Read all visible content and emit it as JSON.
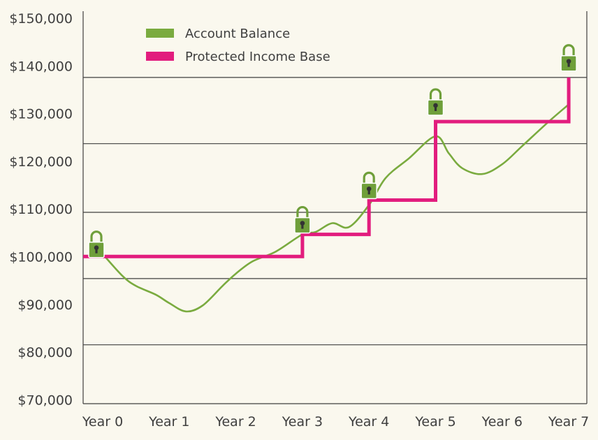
{
  "colors": {
    "background": "#faf8ee",
    "account_balance": "#7aab3f",
    "protected_income_base": "#e21d7e",
    "lock": "#6f9f3a",
    "axis": "#3f3f3f"
  },
  "chart_data": {
    "type": "line",
    "title": "",
    "xlabel": "",
    "ylabel": "",
    "categories": [
      "Year 0",
      "Year 1",
      "Year 2",
      "Year 3",
      "Year 4",
      "Year 5",
      "Year 6",
      "Year 7"
    ],
    "y_ticks": [
      "$150,000",
      "$140,000",
      "$130,000",
      "$120,000",
      "$110,000",
      "$100,000",
      "$90,000",
      "$80,000",
      "$70,000"
    ],
    "ylim": [
      70000,
      150000
    ],
    "grid": "horizontal lines at $136,500, $123,000, $109,000, $95,500, $82,000",
    "legend": "top-left",
    "series": [
      {
        "name": "Account Balance",
        "icon": "solid-line",
        "x": [
          0,
          0.3,
          0.5,
          0.8,
          1.0,
          1.25,
          1.5,
          1.8,
          2.0,
          2.25,
          2.6,
          3.0,
          3.2,
          3.45,
          3.7,
          4.0,
          4.25,
          4.6,
          5.0,
          5.2,
          5.4,
          5.7,
          6.0,
          6.3,
          6.7,
          7.0
        ],
        "values": [
          100500,
          96000,
          94000,
          92200,
          90500,
          88800,
          90000,
          94000,
          96500,
          99000,
          101000,
          104500,
          105000,
          106800,
          106000,
          110500,
          116000,
          120000,
          124500,
          121000,
          118000,
          116800,
          118800,
          122500,
          127500,
          131000
        ]
      },
      {
        "name": "Protected Income Base",
        "icon": "step-line",
        "x": [
          0,
          3,
          3,
          4,
          4,
          5,
          5,
          7,
          7
        ],
        "values": [
          100000,
          100000,
          104500,
          104500,
          111500,
          111500,
          127500,
          127500,
          136500
        ]
      }
    ],
    "lock_markers": [
      {
        "x": 0,
        "icon": "padlock-icon",
        "value": 102500
      },
      {
        "x": 3,
        "icon": "padlock-icon",
        "value": 107500
      },
      {
        "x": 4,
        "icon": "padlock-icon",
        "value": 114500
      },
      {
        "x": 5,
        "icon": "padlock-icon",
        "value": 131500
      },
      {
        "x": 7,
        "icon": "padlock-icon",
        "value": 140500
      }
    ]
  }
}
